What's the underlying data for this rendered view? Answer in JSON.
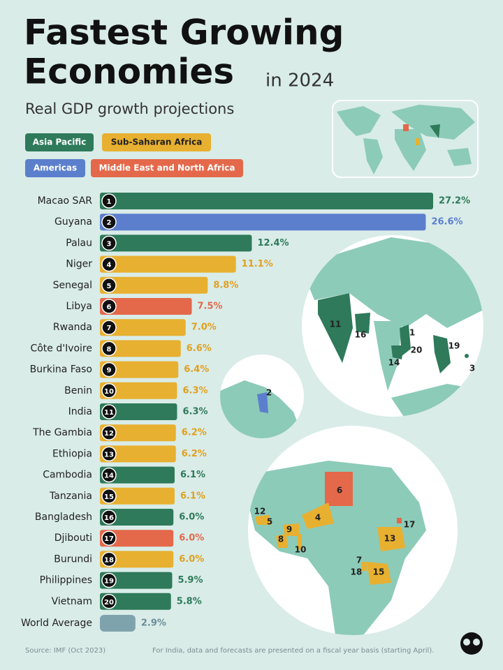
{
  "chart_data": {
    "type": "bar",
    "title_lines": [
      "Fastest Growing",
      "Economies"
    ],
    "title_suffix": "in 2024",
    "subtitle": "Real GDP growth projections",
    "legend": [
      {
        "name": "Asia Pacific",
        "color": "#2e7a5a"
      },
      {
        "name": "Sub-Saharan Africa",
        "color": "#e8b030"
      },
      {
        "name": "Americas",
        "color": "#5b7fcc"
      },
      {
        "name": "Middle East and North Africa",
        "color": "#e4684a"
      }
    ],
    "categories": [
      "Macao SAR",
      "Guyana",
      "Palau",
      "Niger",
      "Senegal",
      "Libya",
      "Rwanda",
      "Côte d'Ivoire",
      "Burkina Faso",
      "Benin",
      "India",
      "The Gambia",
      "Ethiopia",
      "Cambodia",
      "Tanzania",
      "Bangladesh",
      "Djibouti",
      "Burundi",
      "Philippines",
      "Vietnam"
    ],
    "ranks": [
      1,
      2,
      3,
      4,
      5,
      6,
      7,
      8,
      9,
      10,
      11,
      12,
      13,
      14,
      15,
      16,
      17,
      18,
      19,
      20
    ],
    "values": [
      27.2,
      26.6,
      12.4,
      11.1,
      8.8,
      7.5,
      7,
      6.6,
      6.4,
      6.3,
      6.3,
      6.2,
      6.2,
      6.1,
      6.1,
      6,
      6,
      6,
      5.9,
      5.8
    ],
    "value_labels": [
      "27.2%",
      "26.6%",
      "12.4%",
      "11.1%",
      "8.8%",
      "7.5%",
      "7.0%",
      "6.6%",
      "6.4%",
      "6.3%",
      "6.3%",
      "6.2%",
      "6.2%",
      "6.1%",
      "6.1%",
      "6.0%",
      "6.0%",
      "6.0%",
      "5.9%",
      "5.8%"
    ],
    "bar_region": [
      0,
      2,
      0,
      1,
      1,
      3,
      1,
      1,
      1,
      1,
      0,
      1,
      1,
      0,
      1,
      0,
      3,
      1,
      0,
      0
    ],
    "world_average": {
      "label": "World Average",
      "value": 2.9,
      "value_label": "2.9%",
      "color": "#7fa3ad"
    },
    "map_labels": {
      "asia": [
        "11",
        "16",
        "1",
        "20",
        "19",
        "14",
        "3"
      ],
      "americas": [
        "2"
      ],
      "africa": [
        "6",
        "4",
        "12",
        "5",
        "9",
        "8",
        "10",
        "13",
        "17",
        "7",
        "18",
        "15"
      ]
    },
    "source": "Source: IMF (Oct 2023)",
    "note": "For India, data and forecasts are presented on a fiscal year basis (starting April)."
  }
}
